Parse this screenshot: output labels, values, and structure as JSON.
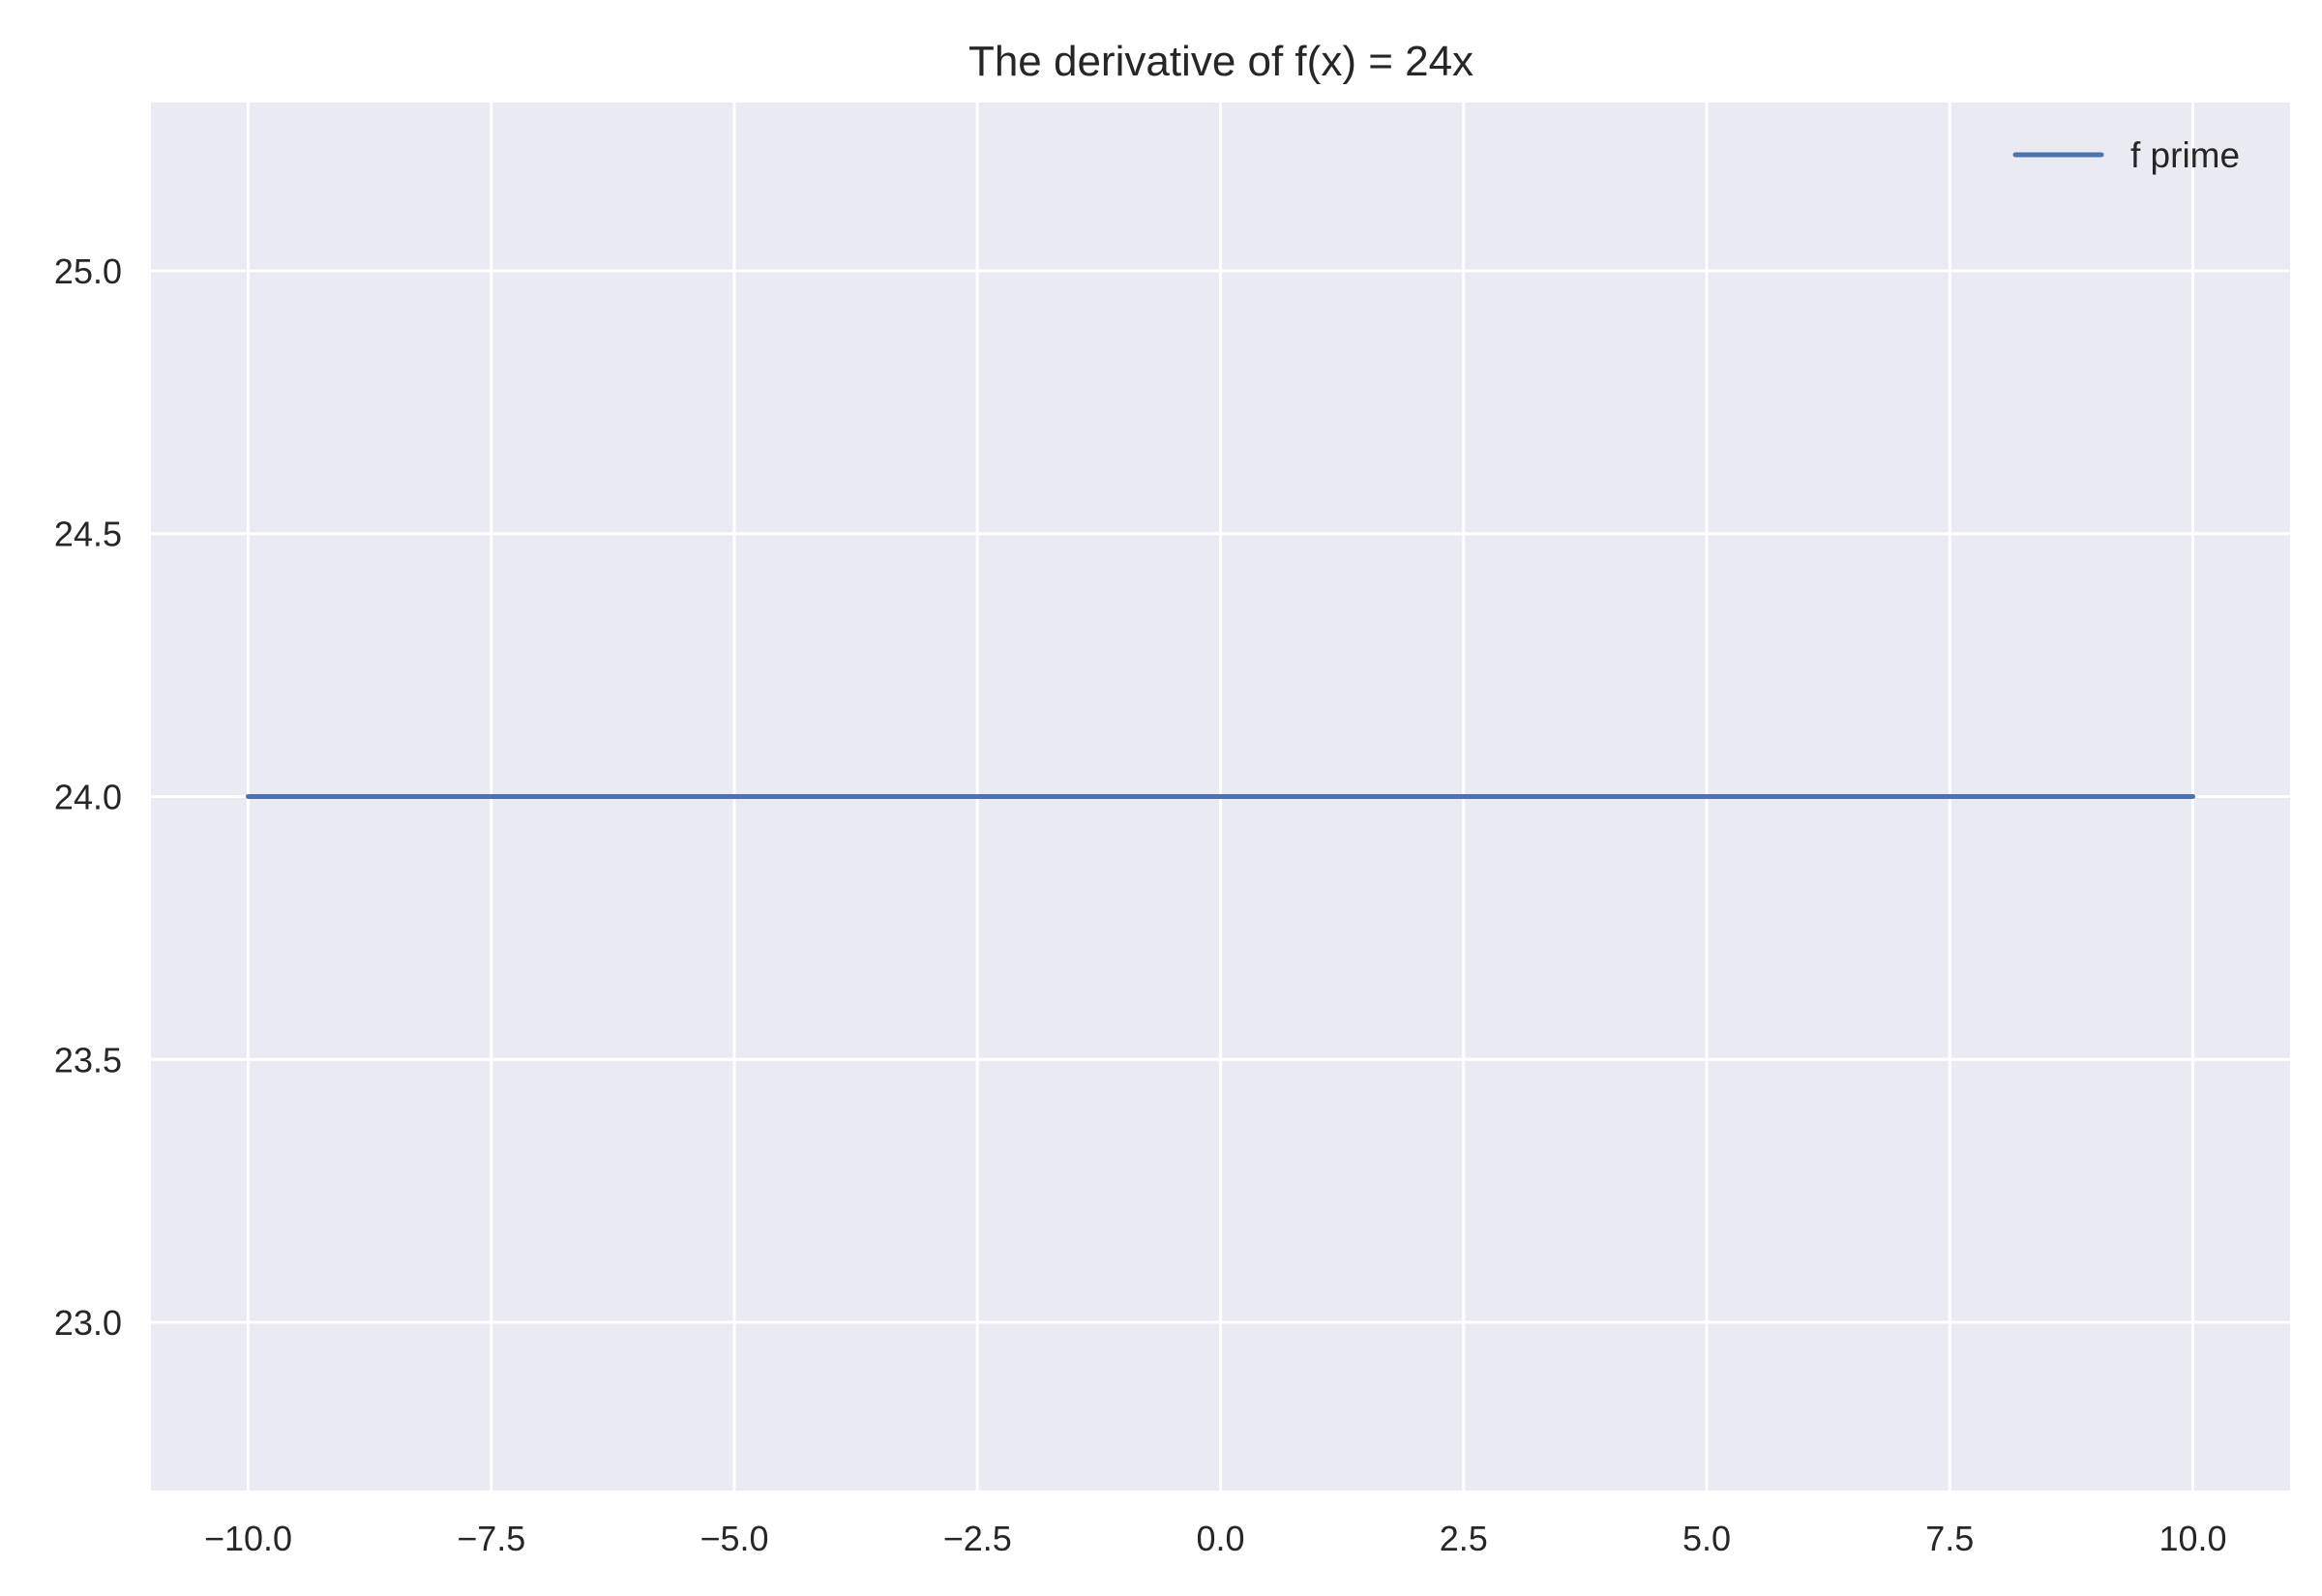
{
  "chart_data": {
    "type": "line",
    "title": "The derivative of f(x) = 24x",
    "xlabel": "",
    "ylabel": "",
    "xlim": [
      -11,
      11
    ],
    "ylim": [
      22.68,
      25.32
    ],
    "grid": true,
    "legend_position": "top-right",
    "x_ticks": [
      -10.0,
      -7.5,
      -5.0,
      -2.5,
      0.0,
      2.5,
      5.0,
      7.5,
      10.0
    ],
    "x_tick_labels": [
      "−10.0",
      "−7.5",
      "−5.0",
      "−2.5",
      "0.0",
      "2.5",
      "5.0",
      "7.5",
      "10.0"
    ],
    "y_ticks": [
      23.0,
      23.5,
      24.0,
      24.5,
      25.0
    ],
    "y_tick_labels": [
      "23.0",
      "23.5",
      "24.0",
      "24.5",
      "25.0"
    ],
    "series": [
      {
        "name": "f prime",
        "color": "#4c72b0",
        "x": [
          -10.0,
          10.0
        ],
        "y": [
          24.0,
          24.0
        ]
      }
    ]
  }
}
